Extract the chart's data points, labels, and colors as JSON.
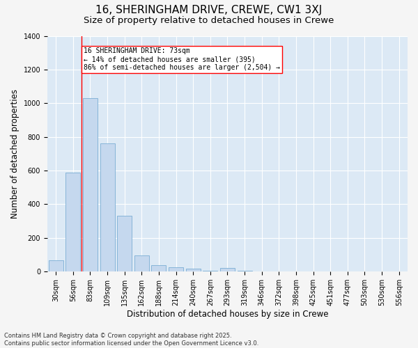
{
  "title_line1": "16, SHERINGHAM DRIVE, CREWE, CW1 3XJ",
  "title_line2": "Size of property relative to detached houses in Crewe",
  "xlabel": "Distribution of detached houses by size in Crewe",
  "ylabel": "Number of detached properties",
  "bar_color": "#c5d8ee",
  "bar_edge_color": "#7aadd4",
  "bg_color": "#dce9f5",
  "grid_color": "#ffffff",
  "fig_bg_color": "#f5f5f5",
  "categories": [
    "30sqm",
    "56sqm",
    "83sqm",
    "109sqm",
    "135sqm",
    "162sqm",
    "188sqm",
    "214sqm",
    "240sqm",
    "267sqm",
    "293sqm",
    "319sqm",
    "346sqm",
    "372sqm",
    "398sqm",
    "425sqm",
    "451sqm",
    "477sqm",
    "503sqm",
    "530sqm",
    "556sqm"
  ],
  "values": [
    65,
    585,
    1030,
    760,
    330,
    95,
    38,
    25,
    15,
    5,
    20,
    5,
    0,
    0,
    0,
    0,
    0,
    0,
    0,
    0,
    0
  ],
  "ylim": [
    0,
    1400
  ],
  "yticks": [
    0,
    200,
    400,
    600,
    800,
    1000,
    1200,
    1400
  ],
  "property_line_x": 1.5,
  "annotation_box_text": "16 SHERINGHAM DRIVE: 73sqm\n← 14% of detached houses are smaller (395)\n86% of semi-detached houses are larger (2,504) →",
  "footnote1": "Contains HM Land Registry data © Crown copyright and database right 2025.",
  "footnote2": "Contains public sector information licensed under the Open Government Licence v3.0.",
  "title_fontsize": 11,
  "subtitle_fontsize": 9.5,
  "tick_fontsize": 7,
  "ylabel_fontsize": 8.5,
  "xlabel_fontsize": 8.5,
  "footnote_fontsize": 6,
  "annot_fontsize": 7
}
